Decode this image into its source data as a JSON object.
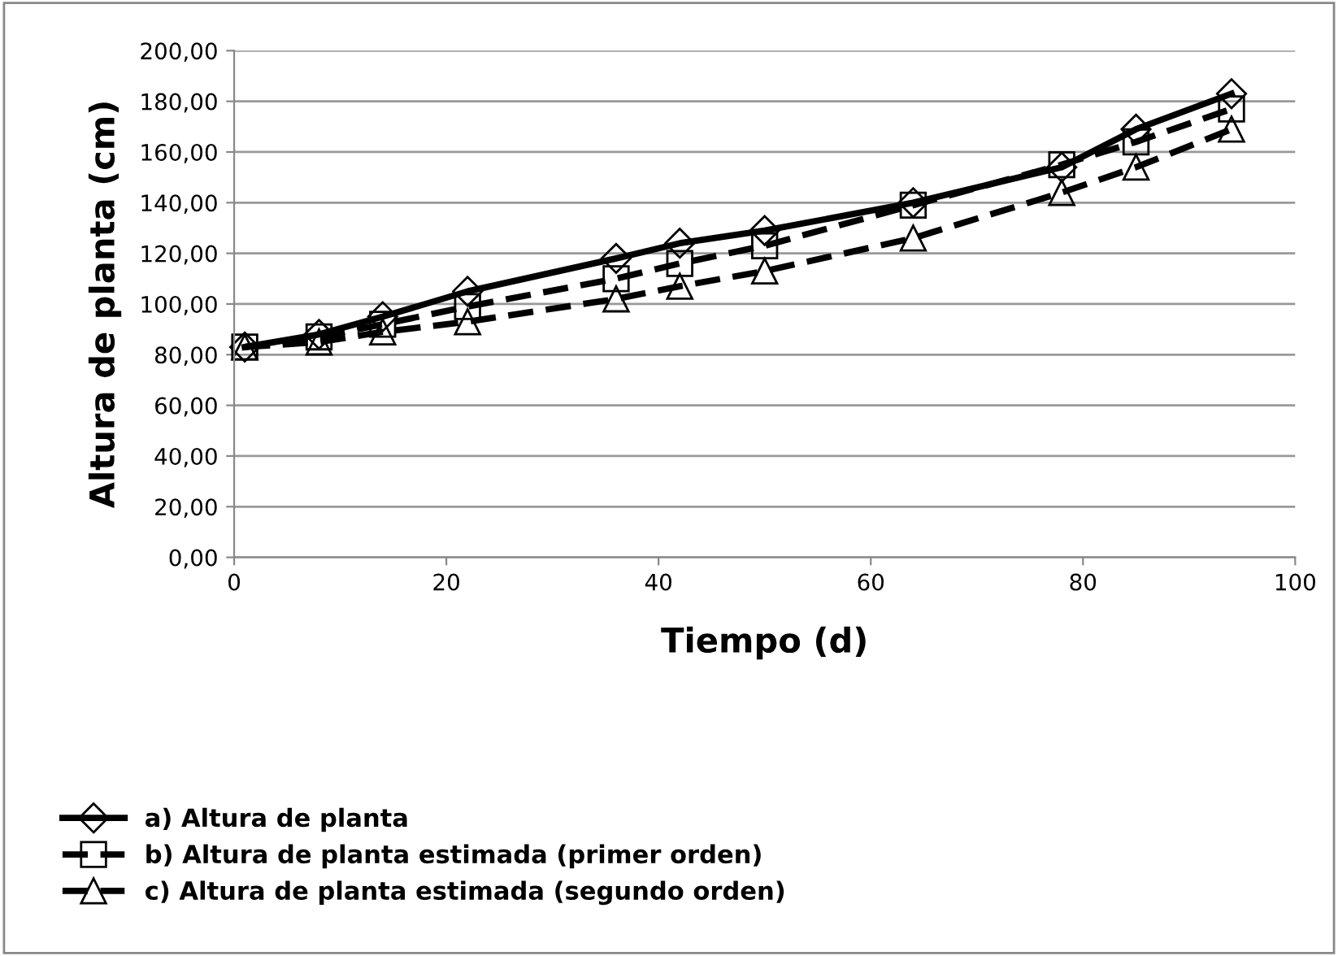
{
  "chart_data": {
    "type": "line",
    "xlabel": "Tiempo (d)",
    "ylabel": "Altura de planta (cm)",
    "x": [
      1,
      8,
      14,
      22,
      36,
      42,
      50,
      64,
      78,
      85,
      94
    ],
    "series": [
      {
        "name": "a) Altura de planta",
        "color": "#000000",
        "marker": "diamond",
        "line_style": "solid",
        "values": [
          83,
          88,
          95,
          105,
          118,
          124,
          129,
          140,
          154,
          169,
          183
        ]
      },
      {
        "name": "b) Altura de planta estimada (primer orden)",
        "color": "#000000",
        "marker": "square",
        "line_style": "dashed",
        "values": [
          83,
          87,
          92,
          99,
          110,
          116,
          123,
          139,
          155,
          164,
          177
        ]
      },
      {
        "name": "c) Altura de planta estimada (segundo orden)",
        "color": "#000000",
        "marker": "triangle",
        "line_style": "dashed",
        "values": [
          83,
          85,
          89,
          93,
          102,
          107,
          113,
          126,
          144,
          154,
          169
        ]
      }
    ],
    "xlim": [
      0,
      100
    ],
    "xticks": [
      0,
      20,
      40,
      60,
      80,
      100
    ],
    "ylim": [
      0,
      200
    ],
    "yticks": [
      {
        "value": 0,
        "label": "0,00"
      },
      {
        "value": 20,
        "label": "20,00"
      },
      {
        "value": 40,
        "label": "40,00"
      },
      {
        "value": 60,
        "label": "60,00"
      },
      {
        "value": 80,
        "label": "80,00"
      },
      {
        "value": 100,
        "label": "100,00"
      },
      {
        "value": 120,
        "label": "120,00"
      },
      {
        "value": 140,
        "label": "140,00"
      },
      {
        "value": 160,
        "label": "160,00"
      },
      {
        "value": 180,
        "label": "180,00"
      },
      {
        "value": 200,
        "label": "200,00"
      }
    ],
    "grid": "y",
    "legend": "bottom left"
  }
}
